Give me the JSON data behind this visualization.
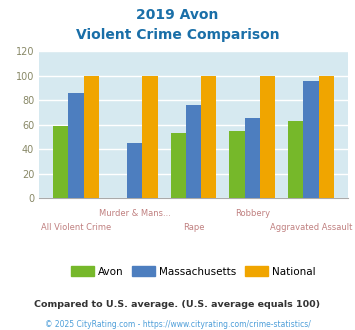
{
  "title_line1": "2019 Avon",
  "title_line2": "Violent Crime Comparison",
  "categories": [
    "All Violent Crime",
    "Murder & Mans...",
    "Rape",
    "Robbery",
    "Aggravated Assault"
  ],
  "avon": [
    59,
    0,
    53,
    55,
    63
  ],
  "massachusetts": [
    86,
    45,
    76,
    65,
    96
  ],
  "national": [
    100,
    100,
    100,
    100,
    100
  ],
  "avon_color": "#76b82a",
  "mass_color": "#4d7ebf",
  "national_color": "#f0a500",
  "bg_color": "#d6e9f0",
  "ylim": [
    0,
    120
  ],
  "yticks": [
    0,
    20,
    40,
    60,
    80,
    100,
    120
  ],
  "title_color": "#1a6fa8",
  "xlabel_color": "#c08080",
  "footnote1": "Compared to U.S. average. (U.S. average equals 100)",
  "footnote2": "© 2025 CityRating.com - https://www.cityrating.com/crime-statistics/",
  "footnote1_color": "#333333",
  "footnote2_color": "#4d9ed9"
}
